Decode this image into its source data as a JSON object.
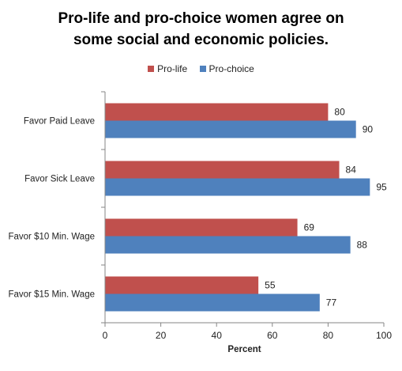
{
  "chart_data": {
    "type": "bar",
    "orientation": "horizontal",
    "title": "Pro-life and pro-choice women agree on some social and economic policies.",
    "title_lines": [
      "Pro-life and pro-choice women agree on",
      "some social and economic policies."
    ],
    "xlabel": "Percent",
    "ylabel": "",
    "xlim": [
      0,
      100
    ],
    "xticks": [
      0,
      20,
      40,
      60,
      80,
      100
    ],
    "grid": false,
    "legend_position": "top",
    "categories": [
      "Favor Paid Leave",
      "Favor Sick Leave",
      "Favor $10 Min. Wage",
      "Favor $15 Min. Wage"
    ],
    "series": [
      {
        "name": "Pro-life",
        "color": "#C0504D",
        "values": [
          80,
          84,
          69,
          55
        ]
      },
      {
        "name": "Pro-choice",
        "color": "#4F81BD",
        "values": [
          90,
          95,
          88,
          77
        ]
      }
    ]
  }
}
